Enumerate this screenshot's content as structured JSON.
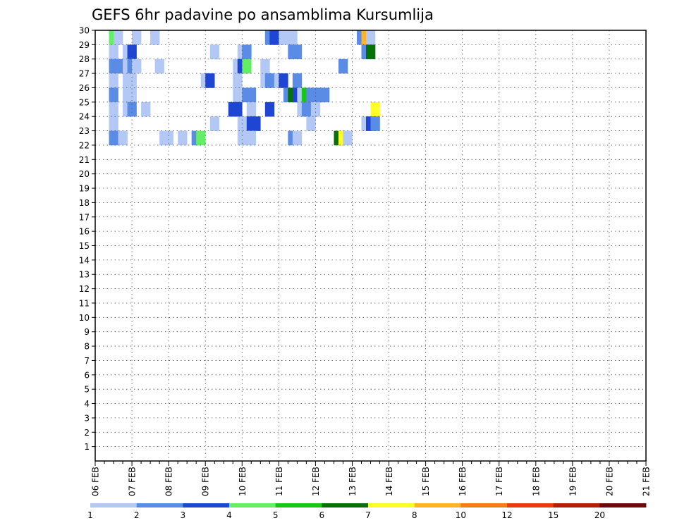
{
  "chart_data": {
    "type": "heatmap",
    "title": "GEFS 6hr padavine po ansamblima Kursumlija",
    "xlabel": "",
    "ylabel": "",
    "ensemble_members": [
      1,
      2,
      3,
      4,
      5,
      6,
      7,
      8,
      9,
      10,
      11,
      12,
      13,
      14,
      15,
      16,
      17,
      18,
      19,
      20,
      21,
      22,
      23,
      24,
      25,
      26,
      27,
      28,
      29,
      30
    ],
    "y_tick_labels": [
      "1",
      "2",
      "3",
      "4",
      "5",
      "6",
      "7",
      "8",
      "9",
      "10",
      "11",
      "12",
      "13",
      "14",
      "15",
      "16",
      "17",
      "18",
      "19",
      "20",
      "21",
      "22",
      "23",
      "24",
      "25",
      "26",
      "27",
      "28",
      "29",
      "30"
    ],
    "x_tick_labels": [
      "06 FEB",
      "07 FEB",
      "08 FEB",
      "09 FEB",
      "10 FEB",
      "11 FEB",
      "12 FEB",
      "13 FEB",
      "14 FEB",
      "15 FEB",
      "16 FEB",
      "17 FEB",
      "18 FEB",
      "19 FEB",
      "20 FEB",
      "21 FEB"
    ],
    "time_steps_per_day": 4,
    "levels": [
      1,
      2,
      3,
      4,
      5,
      6,
      7,
      8,
      10,
      12,
      15,
      20
    ],
    "level_labels": [
      "1",
      "2",
      "3",
      "4",
      "5",
      "6",
      "7",
      "8",
      "10",
      "12",
      "15",
      "20"
    ],
    "colors": [
      "#b4c8f5",
      "#5a8ce6",
      "#1e46d2",
      "#64ee64",
      "#14c814",
      "#087008",
      "#ffff28",
      "#ffb428",
      "#f57d14",
      "#e63c0f",
      "#b41e0a",
      "#6e0a0a"
    ],
    "cells": [
      {
        "m": 30,
        "t": 1.5,
        "l": 3
      },
      {
        "m": 30,
        "t": 2,
        "l": 0
      },
      {
        "m": 30,
        "t": 4,
        "l": 0
      },
      {
        "m": 30,
        "t": 6,
        "l": 0
      },
      {
        "m": 30,
        "t": 18.5,
        "l": 1
      },
      {
        "m": 30,
        "t": 19,
        "l": 2
      },
      {
        "m": 30,
        "t": 19.5,
        "l": 2
      },
      {
        "m": 30,
        "t": 20,
        "l": 0
      },
      {
        "m": 30,
        "t": 20.5,
        "l": 0
      },
      {
        "m": 30,
        "t": 21,
        "l": 0
      },
      {
        "m": 30,
        "t": 28.5,
        "l": 1
      },
      {
        "m": 30,
        "t": 29,
        "l": 7
      },
      {
        "m": 30,
        "t": 29.5,
        "l": 0
      },
      {
        "m": 29,
        "t": 1.5,
        "l": 0
      },
      {
        "m": 29,
        "t": 3,
        "l": 0
      },
      {
        "m": 29,
        "t": 3.5,
        "l": 2
      },
      {
        "m": 29,
        "t": 12.5,
        "l": 0
      },
      {
        "m": 29,
        "t": 15.5,
        "l": 0
      },
      {
        "m": 29,
        "t": 16,
        "l": 1
      },
      {
        "m": 29,
        "t": 21,
        "l": 1
      },
      {
        "m": 29,
        "t": 21.5,
        "l": 1
      },
      {
        "m": 29,
        "t": 29,
        "l": 1
      },
      {
        "m": 29,
        "t": 29.5,
        "l": 5
      },
      {
        "m": 28,
        "t": 1.5,
        "l": 1
      },
      {
        "m": 28,
        "t": 2.5,
        "l": 1
      },
      {
        "m": 28,
        "t": 3,
        "l": 0
      },
      {
        "m": 28,
        "t": 3.5,
        "l": 1
      },
      {
        "m": 28,
        "t": 4,
        "l": 0
      },
      {
        "m": 28,
        "t": 6.5,
        "l": 0
      },
      {
        "m": 28,
        "t": 15,
        "l": 0
      },
      {
        "m": 28,
        "t": 15.5,
        "l": 2
      },
      {
        "m": 28,
        "t": 16,
        "l": 3
      },
      {
        "m": 28,
        "t": 18,
        "l": 0
      },
      {
        "m": 28,
        "t": 26.5,
        "l": 1
      },
      {
        "m": 27,
        "t": 1.5,
        "l": 0
      },
      {
        "m": 27,
        "t": 3,
        "l": 0
      },
      {
        "m": 27,
        "t": 3.5,
        "l": 0
      },
      {
        "m": 27,
        "t": 11.5,
        "l": 0
      },
      {
        "m": 27,
        "t": 12,
        "l": 2
      },
      {
        "m": 27,
        "t": 15,
        "l": 0
      },
      {
        "m": 27,
        "t": 18,
        "l": 0
      },
      {
        "m": 27,
        "t": 18.5,
        "l": 1
      },
      {
        "m": 27,
        "t": 19.5,
        "l": 0
      },
      {
        "m": 27,
        "t": 20,
        "l": 2
      },
      {
        "m": 27,
        "t": 21.5,
        "l": 1
      },
      {
        "m": 26,
        "t": 1.5,
        "l": 1
      },
      {
        "m": 26,
        "t": 3,
        "l": 0
      },
      {
        "m": 26,
        "t": 3.5,
        "l": 0
      },
      {
        "m": 26,
        "t": 15,
        "l": 0
      },
      {
        "m": 26,
        "t": 16,
        "l": 1
      },
      {
        "m": 26,
        "t": 16.5,
        "l": 1
      },
      {
        "m": 26,
        "t": 20.5,
        "l": 1
      },
      {
        "m": 26,
        "t": 21,
        "l": 5
      },
      {
        "m": 26,
        "t": 21.5,
        "l": 2
      },
      {
        "m": 26,
        "t": 22,
        "l": 0
      },
      {
        "m": 26,
        "t": 22.5,
        "l": 4
      },
      {
        "m": 26,
        "t": 23,
        "l": 1
      },
      {
        "m": 26,
        "t": 23.5,
        "l": 1
      },
      {
        "m": 26,
        "t": 24,
        "l": 1
      },
      {
        "m": 26,
        "t": 24.5,
        "l": 1
      },
      {
        "m": 25,
        "t": 1.5,
        "l": 0
      },
      {
        "m": 25,
        "t": 3,
        "l": 0
      },
      {
        "m": 25,
        "t": 3.5,
        "l": 1
      },
      {
        "m": 25,
        "t": 5,
        "l": 0
      },
      {
        "m": 25,
        "t": 14.5,
        "l": 2
      },
      {
        "m": 25,
        "t": 15,
        "l": 2
      },
      {
        "m": 25,
        "t": 16.5,
        "l": 0
      },
      {
        "m": 25,
        "t": 18.5,
        "l": 2
      },
      {
        "m": 25,
        "t": 22,
        "l": 0
      },
      {
        "m": 25,
        "t": 22.5,
        "l": 1
      },
      {
        "m": 25,
        "t": 23,
        "l": 1
      },
      {
        "m": 25,
        "t": 23.5,
        "l": 0
      },
      {
        "m": 25,
        "t": 30,
        "l": 6
      },
      {
        "m": 24,
        "t": 1.5,
        "l": 0
      },
      {
        "m": 24,
        "t": 12.5,
        "l": 0
      },
      {
        "m": 24,
        "t": 15.5,
        "l": 0
      },
      {
        "m": 24,
        "t": 16.5,
        "l": 2
      },
      {
        "m": 24,
        "t": 17,
        "l": 2
      },
      {
        "m": 24,
        "t": 23,
        "l": 0
      },
      {
        "m": 24,
        "t": 29,
        "l": 0
      },
      {
        "m": 24,
        "t": 29.5,
        "l": 2
      },
      {
        "m": 24,
        "t": 30,
        "l": 1
      },
      {
        "m": 23,
        "t": 1.5,
        "l": 1
      },
      {
        "m": 23,
        "t": 2.5,
        "l": 0
      },
      {
        "m": 23,
        "t": 7,
        "l": 0
      },
      {
        "m": 23,
        "t": 7.5,
        "l": 0
      },
      {
        "m": 23,
        "t": 9,
        "l": 0
      },
      {
        "m": 23,
        "t": 10.5,
        "l": 1
      },
      {
        "m": 23,
        "t": 11,
        "l": 3
      },
      {
        "m": 23,
        "t": 15.5,
        "l": 0
      },
      {
        "m": 23,
        "t": 16.5,
        "l": 0
      },
      {
        "m": 23,
        "t": 21,
        "l": 1
      },
      {
        "m": 23,
        "t": 21.5,
        "l": 0
      },
      {
        "m": 23,
        "t": 26,
        "l": 5
      },
      {
        "m": 23,
        "t": 26.5,
        "l": 6
      },
      {
        "m": 23,
        "t": 27,
        "l": 0
      }
    ]
  }
}
